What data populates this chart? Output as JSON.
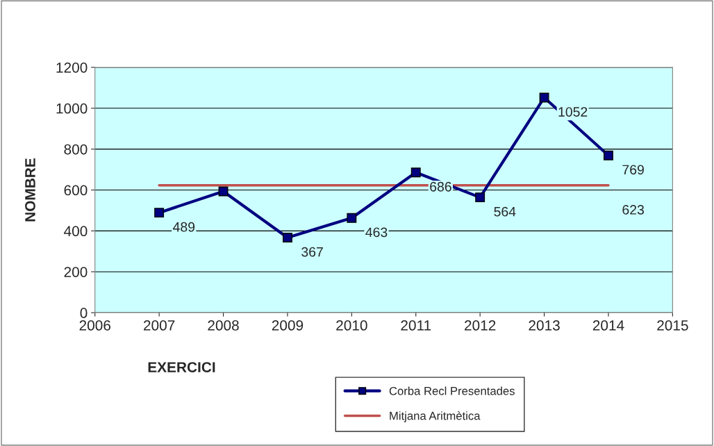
{
  "chart_data": {
    "type": "line",
    "xlabel": "EXERCICI",
    "ylabel": "NOMBRE",
    "x": [
      2007,
      2008,
      2009,
      2010,
      2011,
      2012,
      2013,
      2014
    ],
    "series": [
      {
        "name": "Corba Recl Presentades",
        "color": "#000080",
        "marker": "square",
        "values": [
          489,
          593,
          367,
          463,
          686,
          564,
          1052,
          769
        ],
        "value_labels": [
          "489",
          null,
          "367",
          "463",
          "686",
          "564",
          "1052",
          "769"
        ]
      },
      {
        "name": "Mitjana Aritmètica",
        "color": "#c0504d",
        "marker": "none",
        "values": [
          623,
          623,
          623,
          623,
          623,
          623,
          623,
          623
        ],
        "value_labels": [
          null,
          null,
          null,
          null,
          null,
          null,
          null,
          "623"
        ]
      }
    ],
    "xlim": [
      2006,
      2015
    ],
    "xticks": [
      2006,
      2007,
      2008,
      2009,
      2010,
      2011,
      2012,
      2013,
      2014,
      2015
    ],
    "ylim": [
      0,
      1200
    ],
    "yticks": [
      0,
      200,
      400,
      600,
      800,
      1000,
      1200
    ],
    "grid": "y",
    "legend": "bottom"
  }
}
